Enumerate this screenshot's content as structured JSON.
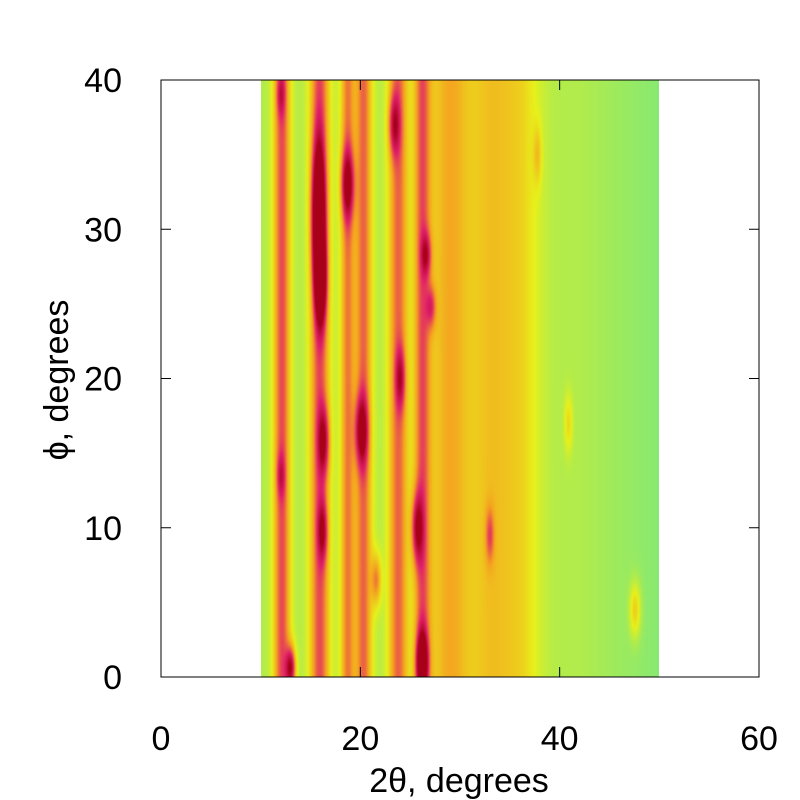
{
  "chart_data": {
    "type": "heatmap",
    "title": "",
    "xlabel": "2θ, degrees",
    "ylabel": "ϕ, degrees",
    "xlim": [
      0,
      60
    ],
    "ylim": [
      0,
      40
    ],
    "x_ticks": [
      0,
      20,
      40,
      60
    ],
    "y_ticks": [
      0,
      10,
      20,
      30,
      40
    ],
    "data_extent": {
      "x": [
        10,
        50
      ],
      "y": [
        0,
        40
      ]
    },
    "colorscale": [
      "#7ee87a",
      "#e8f01a",
      "#f5a020",
      "#e0206a",
      "#a80018"
    ],
    "background_color": "#7ee66a",
    "peaks": [
      {
        "x": 15.8,
        "y": 31,
        "sx": 0.45,
        "sy": 3.2,
        "intensity": 1.0
      },
      {
        "x": 16.0,
        "y": 26.5,
        "sx": 0.4,
        "sy": 2.0,
        "intensity": 0.8
      },
      {
        "x": 18.7,
        "y": 33,
        "sx": 0.45,
        "sy": 1.6,
        "intensity": 0.6
      },
      {
        "x": 23.4,
        "y": 37,
        "sx": 0.4,
        "sy": 1.4,
        "intensity": 0.45
      },
      {
        "x": 26.6,
        "y": 28.3,
        "sx": 0.35,
        "sy": 1.0,
        "intensity": 0.4
      },
      {
        "x": 27.1,
        "y": 24.8,
        "sx": 0.35,
        "sy": 1.0,
        "intensity": 0.35
      },
      {
        "x": 24.0,
        "y": 20,
        "sx": 0.35,
        "sy": 1.4,
        "intensity": 0.4
      },
      {
        "x": 20.1,
        "y": 16.5,
        "sx": 0.45,
        "sy": 1.6,
        "intensity": 0.6
      },
      {
        "x": 16.3,
        "y": 15.8,
        "sx": 0.4,
        "sy": 1.6,
        "intensity": 0.5
      },
      {
        "x": 16.2,
        "y": 9.8,
        "sx": 0.35,
        "sy": 1.4,
        "intensity": 0.45
      },
      {
        "x": 25.7,
        "y": 10,
        "sx": 0.4,
        "sy": 1.6,
        "intensity": 0.55
      },
      {
        "x": 21.6,
        "y": 6.5,
        "sx": 0.35,
        "sy": 1.2,
        "intensity": 0.4
      },
      {
        "x": 13.0,
        "y": 0.6,
        "sx": 0.35,
        "sy": 1.0,
        "intensity": 0.7
      },
      {
        "x": 26.2,
        "y": 1.0,
        "sx": 0.4,
        "sy": 1.4,
        "intensity": 0.85
      },
      {
        "x": 47.6,
        "y": 4.5,
        "sx": 0.4,
        "sy": 1.3,
        "intensity": 0.3
      },
      {
        "x": 33.0,
        "y": 9.5,
        "sx": 0.3,
        "sy": 1.3,
        "intensity": 0.3
      },
      {
        "x": 12.0,
        "y": 13.5,
        "sx": 0.3,
        "sy": 1.0,
        "intensity": 0.25
      },
      {
        "x": 12.0,
        "y": 39,
        "sx": 0.3,
        "sy": 1.0,
        "intensity": 0.25
      },
      {
        "x": 37.8,
        "y": 35,
        "sx": 0.3,
        "sy": 1.4,
        "intensity": 0.2
      },
      {
        "x": 40.9,
        "y": 17,
        "sx": 0.3,
        "sy": 1.4,
        "intensity": 0.2
      }
    ],
    "stripes": [
      {
        "x": 12.1,
        "sx": 0.6,
        "intensity": 0.55
      },
      {
        "x": 15.9,
        "sx": 0.7,
        "intensity": 0.55
      },
      {
        "x": 18.7,
        "sx": 0.5,
        "intensity": 0.45
      },
      {
        "x": 20.3,
        "sx": 0.6,
        "intensity": 0.5
      },
      {
        "x": 23.8,
        "sx": 0.7,
        "intensity": 0.5
      },
      {
        "x": 26.2,
        "sx": 0.6,
        "intensity": 0.5
      },
      {
        "x": 29.0,
        "sx": 1.5,
        "intensity": 0.35
      },
      {
        "x": 33.0,
        "sx": 1.5,
        "intensity": 0.25
      },
      {
        "x": 36.0,
        "sx": 1.5,
        "intensity": 0.2
      }
    ]
  }
}
